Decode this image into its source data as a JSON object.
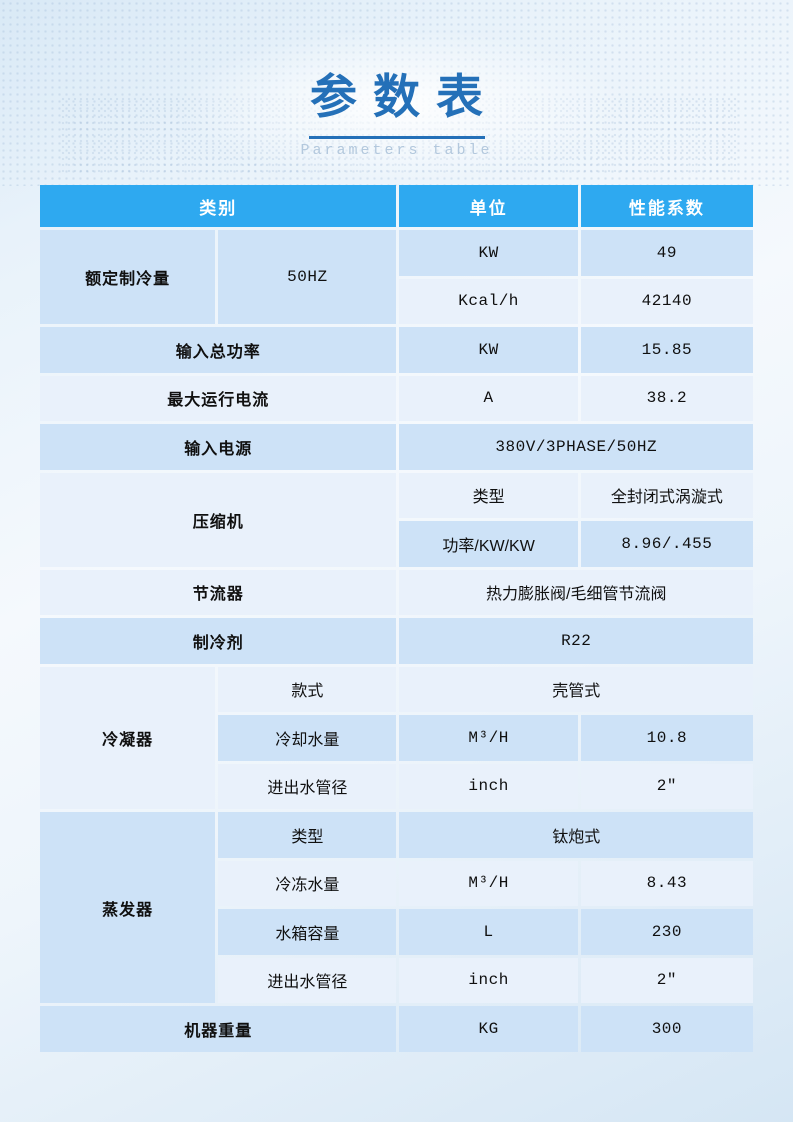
{
  "title": {
    "zh": "参数表",
    "en": "Parameters table"
  },
  "colors": {
    "header_bg": "#2ea9f0",
    "row_blue": "#cde2f7",
    "row_pale": "#e9f1fb",
    "title_blue": "#2470b8",
    "subtitle_gray_blue": "#b3c8dd"
  },
  "table": {
    "headers": [
      "类别",
      "单位",
      "性能系数"
    ],
    "rows": [
      {
        "cells": [
          {
            "text": "额定制冷量"
          },
          {
            "text": "50HZ"
          },
          {
            "text": "KW"
          },
          {
            "text": "49"
          }
        ]
      },
      {
        "cells": [
          {
            "text": "Kcal/h"
          },
          {
            "text": "42140"
          }
        ]
      },
      {
        "cells": [
          {
            "text": "输入总功率"
          },
          {
            "text": "KW"
          },
          {
            "text": "15.85"
          }
        ]
      },
      {
        "cells": [
          {
            "text": "最大运行电流"
          },
          {
            "text": "A"
          },
          {
            "text": "38.2"
          }
        ]
      },
      {
        "cells": [
          {
            "text": "输入电源"
          },
          {
            "text": "380V/3PHASE/50HZ"
          }
        ]
      },
      {
        "cells": [
          {
            "text": "压缩机"
          },
          {
            "text": "类型"
          },
          {
            "text": "全封闭式涡漩式"
          }
        ]
      },
      {
        "cells": [
          {
            "text": "功率/KW/KW"
          },
          {
            "text": "8.96/.455"
          }
        ]
      },
      {
        "cells": [
          {
            "text": "节流器"
          },
          {
            "text": "热力膨胀阀/毛细管节流阀"
          }
        ]
      },
      {
        "cells": [
          {
            "text": "制冷剂"
          },
          {
            "text": "R22"
          }
        ]
      },
      {
        "cells": [
          {
            "text": "冷凝器"
          },
          {
            "text": "款式"
          },
          {
            "text": "壳管式"
          }
        ]
      },
      {
        "cells": [
          {
            "text": "冷却水量"
          },
          {
            "text": "M³/H"
          },
          {
            "text": "10.8"
          }
        ]
      },
      {
        "cells": [
          {
            "text": "进出水管径"
          },
          {
            "text": "inch"
          },
          {
            "text": "2″"
          }
        ]
      },
      {
        "cells": [
          {
            "text": "蒸发器"
          },
          {
            "text": "类型"
          },
          {
            "text": "钛炮式"
          }
        ]
      },
      {
        "cells": [
          {
            "text": "冷冻水量"
          },
          {
            "text": "M³/H"
          },
          {
            "text": "8.43"
          }
        ]
      },
      {
        "cells": [
          {
            "text": "水箱容量"
          },
          {
            "text": "L"
          },
          {
            "text": "230"
          }
        ]
      },
      {
        "cells": [
          {
            "text": "进出水管径"
          },
          {
            "text": "inch"
          },
          {
            "text": "2″"
          }
        ]
      },
      {
        "cells": [
          {
            "text": "机器重量"
          },
          {
            "text": "KG"
          },
          {
            "text": "300"
          }
        ]
      }
    ]
  }
}
